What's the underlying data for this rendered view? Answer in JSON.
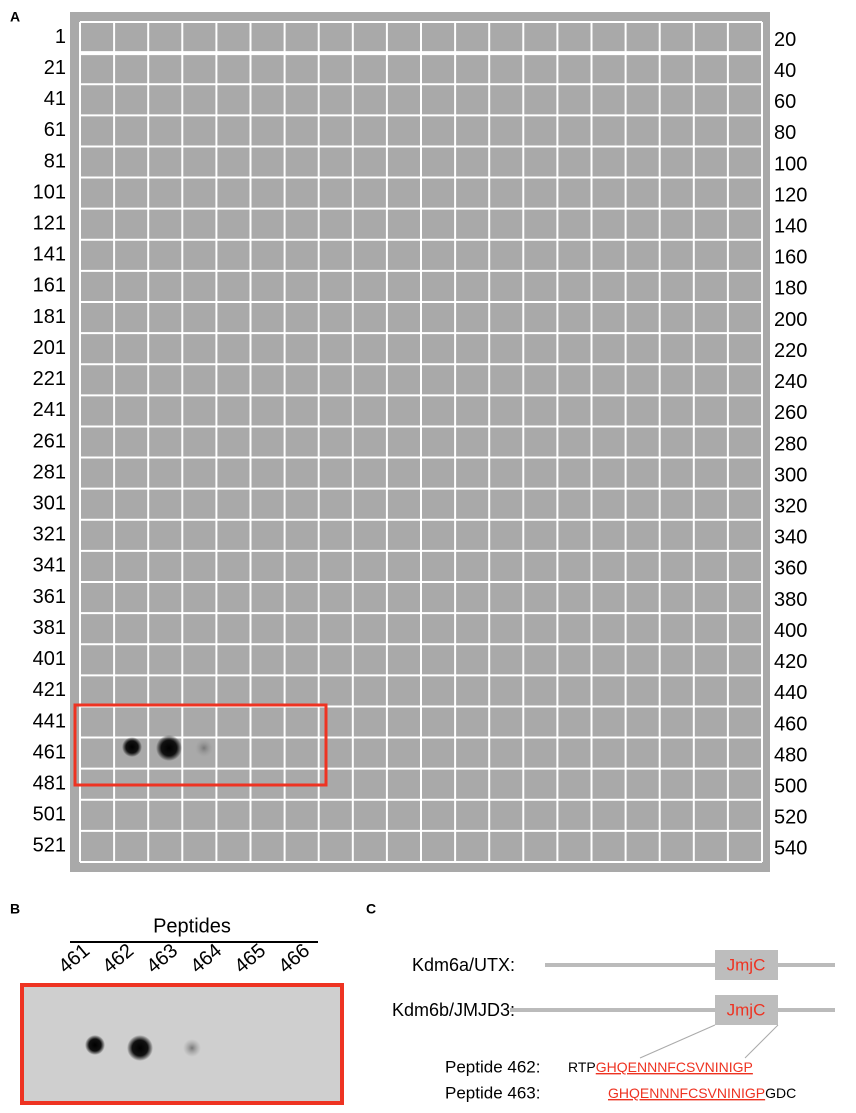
{
  "panel_a": {
    "label": "A",
    "left_labels": [
      "1",
      "21",
      "41",
      "61",
      "81",
      "101",
      "121",
      "141",
      "161",
      "181",
      "201",
      "221",
      "241",
      "261",
      "281",
      "301",
      "321",
      "341",
      "361",
      "381",
      "401",
      "421",
      "441",
      "461",
      "481",
      "501",
      "521"
    ],
    "right_labels": [
      "20",
      "40",
      "60",
      "80",
      "100",
      "120",
      "140",
      "160",
      "180",
      "200",
      "220",
      "240",
      "260",
      "280",
      "300",
      "320",
      "340",
      "360",
      "380",
      "400",
      "420",
      "440",
      "460",
      "480",
      "500",
      "520",
      "540"
    ]
  },
  "panel_b": {
    "label": "B",
    "title": "Peptides",
    "peptides": [
      "461",
      "462",
      "463",
      "464",
      "465",
      "466"
    ]
  },
  "panel_c": {
    "label": "C",
    "proteins": [
      {
        "name": "Kdm6a/UTX:",
        "domain": "JmjC"
      },
      {
        "name": "Kdm6b/JMJD3:",
        "domain": "JmjC"
      }
    ],
    "peptides": [
      {
        "label": "Peptide 462:",
        "prefix": "RTP",
        "core": "GHQENNNFCSVNINIGP",
        "suffix": ""
      },
      {
        "label": "Peptide 463:",
        "prefix": "",
        "core": "GHQENNNFCSVNINIGP",
        "suffix": "GDC"
      }
    ]
  }
}
